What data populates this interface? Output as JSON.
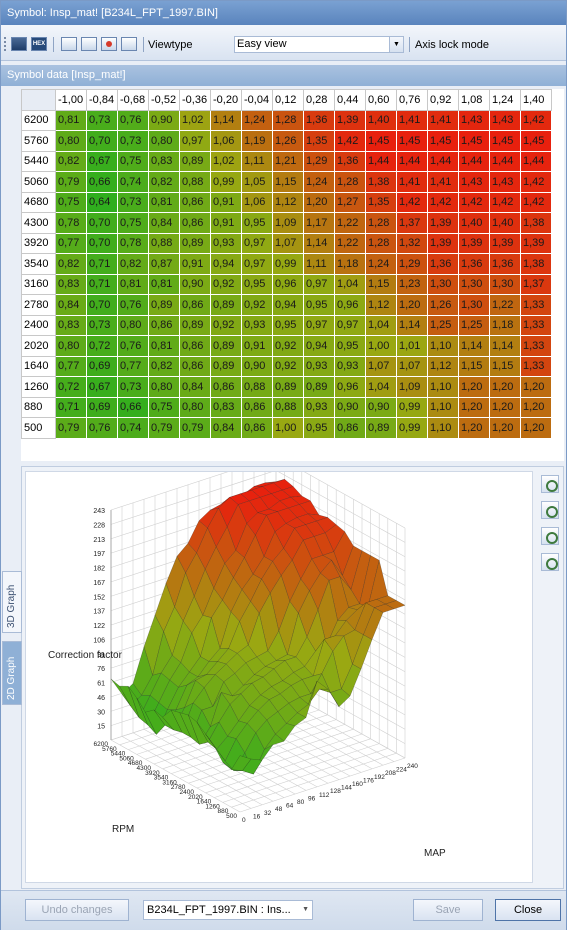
{
  "window": {
    "title": "Symbol: Insp_mat! [B234L_FPT_1997.BIN]"
  },
  "toolbar": {
    "hex_label": "HEX",
    "viewtype_label": "Viewtype",
    "viewtype_value": "Easy view",
    "axis_lock_label": "Axis lock mode"
  },
  "panel": {
    "header": "Symbol data [Insp_mat!]"
  },
  "table": {
    "columns": [
      "-1,00",
      "-0,84",
      "-0,68",
      "-0,52",
      "-0,36",
      "-0,20",
      "-0,04",
      "0,12",
      "0,28",
      "0,44",
      "0,60",
      "0,76",
      "0,92",
      "1,08",
      "1,24",
      "1,40"
    ],
    "rows": [
      {
        "rpm": "6200",
        "values": [
          "0,81",
          "0,73",
          "0,76",
          "0,90",
          "1,02",
          "1,14",
          "1,24",
          "1,28",
          "1,36",
          "1,39",
          "1,40",
          "1,41",
          "1,41",
          "1,43",
          "1,43",
          "1,42"
        ]
      },
      {
        "rpm": "5760",
        "values": [
          "0,80",
          "0,70",
          "0,73",
          "0,80",
          "0,97",
          "1,06",
          "1,19",
          "1,26",
          "1,35",
          "1,42",
          "1,45",
          "1,45",
          "1,45",
          "1,45",
          "1,45",
          "1,45"
        ]
      },
      {
        "rpm": "5440",
        "values": [
          "0,82",
          "0,67",
          "0,75",
          "0,83",
          "0,89",
          "1,02",
          "1,11",
          "1,21",
          "1,29",
          "1,36",
          "1,44",
          "1,44",
          "1,44",
          "1,44",
          "1,44",
          "1,44"
        ]
      },
      {
        "rpm": "5060",
        "values": [
          "0,79",
          "0,66",
          "0,74",
          "0,82",
          "0,88",
          "0,99",
          "1,05",
          "1,15",
          "1,24",
          "1,28",
          "1,38",
          "1,41",
          "1,41",
          "1,43",
          "1,43",
          "1,42"
        ]
      },
      {
        "rpm": "4680",
        "values": [
          "0,75",
          "0,64",
          "0,73",
          "0,81",
          "0,86",
          "0,91",
          "1,06",
          "1,12",
          "1,20",
          "1,27",
          "1,35",
          "1,42",
          "1,42",
          "1,42",
          "1,42",
          "1,42"
        ]
      },
      {
        "rpm": "4300",
        "values": [
          "0,78",
          "0,70",
          "0,75",
          "0,84",
          "0,86",
          "0,91",
          "0,95",
          "1,09",
          "1,17",
          "1,22",
          "1,28",
          "1,37",
          "1,39",
          "1,40",
          "1,40",
          "1,38"
        ]
      },
      {
        "rpm": "3920",
        "values": [
          "0,77",
          "0,70",
          "0,78",
          "0,88",
          "0,89",
          "0,93",
          "0,97",
          "1,07",
          "1,14",
          "1,22",
          "1,28",
          "1,32",
          "1,39",
          "1,39",
          "1,39",
          "1,39"
        ]
      },
      {
        "rpm": "3540",
        "values": [
          "0,82",
          "0,71",
          "0,82",
          "0,87",
          "0,91",
          "0,94",
          "0,97",
          "0,99",
          "1,11",
          "1,18",
          "1,24",
          "1,29",
          "1,36",
          "1,36",
          "1,36",
          "1,38"
        ]
      },
      {
        "rpm": "3160",
        "values": [
          "0,83",
          "0,71",
          "0,81",
          "0,81",
          "0,90",
          "0,92",
          "0,95",
          "0,96",
          "0,97",
          "1,04",
          "1,15",
          "1,23",
          "1,30",
          "1,30",
          "1,30",
          "1,37"
        ]
      },
      {
        "rpm": "2780",
        "values": [
          "0,84",
          "0,70",
          "0,76",
          "0,89",
          "0,86",
          "0,89",
          "0,92",
          "0,94",
          "0,95",
          "0,96",
          "1,12",
          "1,20",
          "1,26",
          "1,30",
          "1,22",
          "1,33"
        ]
      },
      {
        "rpm": "2400",
        "values": [
          "0,83",
          "0,73",
          "0,80",
          "0,86",
          "0,89",
          "0,92",
          "0,93",
          "0,95",
          "0,97",
          "0,97",
          "1,04",
          "1,14",
          "1,25",
          "1,25",
          "1,18",
          "1,33"
        ]
      },
      {
        "rpm": "2020",
        "values": [
          "0,80",
          "0,72",
          "0,76",
          "0,81",
          "0,86",
          "0,89",
          "0,91",
          "0,92",
          "0,94",
          "0,95",
          "1,00",
          "1,01",
          "1,10",
          "1,14",
          "1,14",
          "1,33"
        ]
      },
      {
        "rpm": "1640",
        "values": [
          "0,77",
          "0,69",
          "0,77",
          "0,82",
          "0,86",
          "0,89",
          "0,90",
          "0,92",
          "0,93",
          "0,93",
          "1,07",
          "1,07",
          "1,12",
          "1,15",
          "1,15",
          "1,33"
        ]
      },
      {
        "rpm": "1260",
        "values": [
          "0,72",
          "0,67",
          "0,73",
          "0,80",
          "0,84",
          "0,86",
          "0,88",
          "0,89",
          "0,89",
          "0,96",
          "1,04",
          "1,09",
          "1,10",
          "1,20",
          "1,20",
          "1,20"
        ]
      },
      {
        "rpm": "880",
        "values": [
          "0,71",
          "0,69",
          "0,66",
          "0,75",
          "0,80",
          "0,83",
          "0,86",
          "0,88",
          "0,93",
          "0,90",
          "0,90",
          "0,99",
          "1,10",
          "1,20",
          "1,20",
          "1,20"
        ]
      },
      {
        "rpm": "500",
        "values": [
          "0,79",
          "0,76",
          "0,74",
          "0,79",
          "0,79",
          "0,84",
          "0,86",
          "1,00",
          "0,95",
          "0,86",
          "0,89",
          "0,99",
          "1,10",
          "1,20",
          "1,20",
          "1,20"
        ]
      }
    ],
    "color_low": "#2fae1e",
    "color_mid": "#9aa812",
    "color_high": "#e8200e"
  },
  "graph": {
    "tab_3d": "3D Graph",
    "tab_2d": "2D Graph",
    "z_label": "Correction factor",
    "x_label": "RPM",
    "y_label": "MAP",
    "z_ticks": [
      "243",
      "228",
      "213",
      "197",
      "182",
      "167",
      "152",
      "137",
      "122",
      "106",
      "91",
      "76",
      "61",
      "46",
      "30",
      "15"
    ],
    "rpm_ticks": [
      "6200",
      "5760",
      "5440",
      "5060",
      "4680",
      "4300",
      "3920",
      "3540",
      "3160",
      "2780",
      "2400",
      "2020",
      "1640",
      "1260",
      "880",
      "500"
    ],
    "map_ticks": [
      "0",
      "16",
      "32",
      "48",
      "64",
      "80",
      "96",
      "112",
      "128",
      "144",
      "160",
      "176",
      "192",
      "208",
      "224",
      "240"
    ]
  },
  "footer": {
    "undo_label": "Undo changes",
    "file_combo": "B234L_FPT_1997.BIN : Ins...",
    "save_label": "Save",
    "close_label": "Close"
  }
}
